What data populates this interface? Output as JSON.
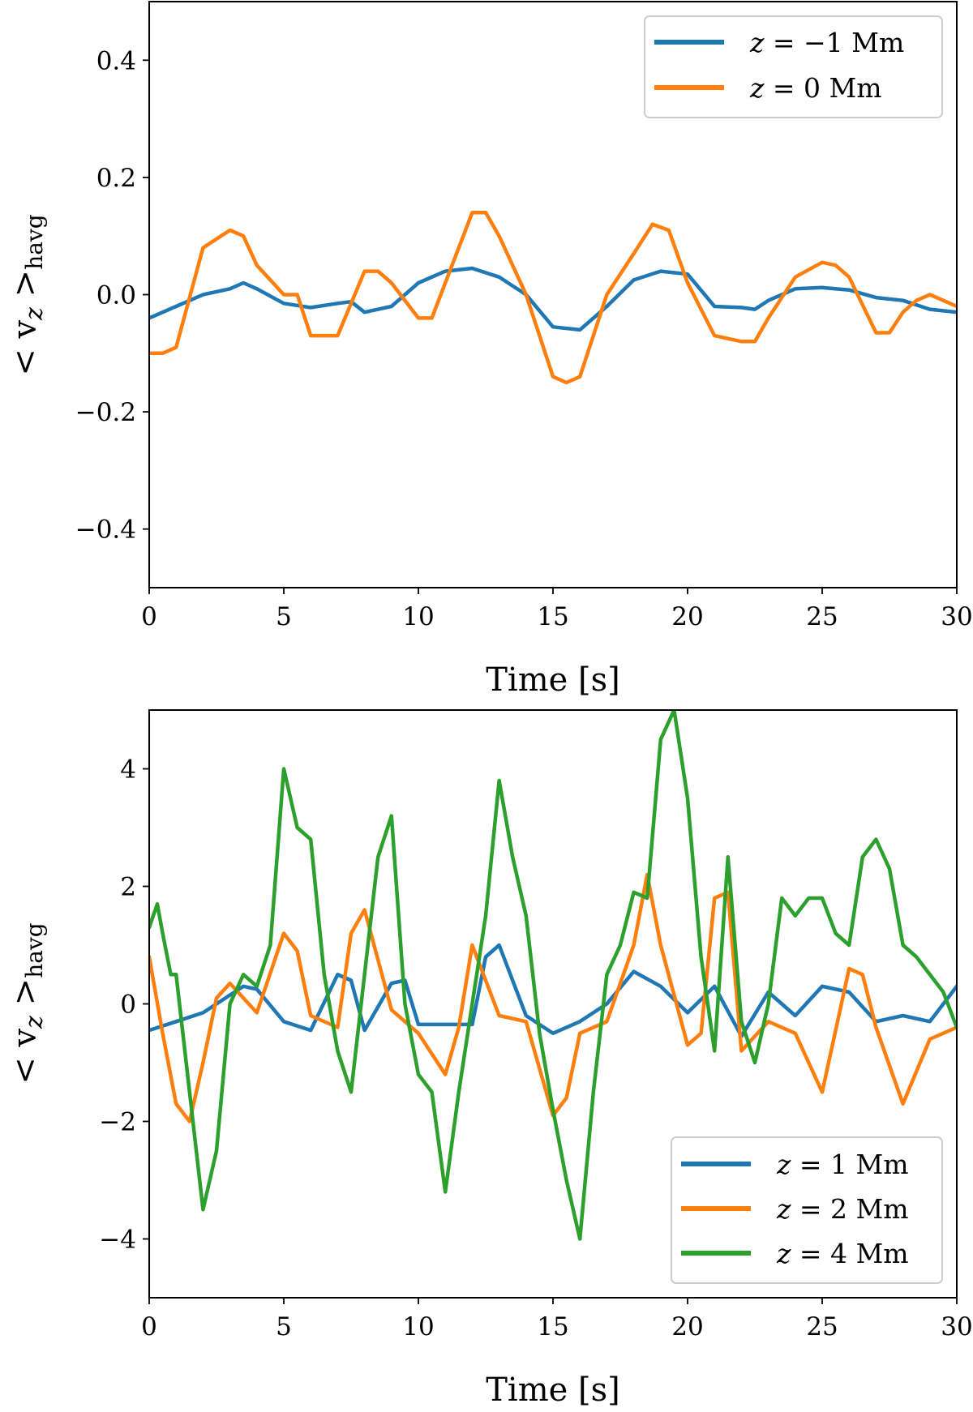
{
  "chart_data": [
    {
      "type": "line",
      "xlabel": "Time [s]",
      "ylabel": "< v",
      "ylabel_sub": "z",
      "ylabel_tail": " >",
      "ylabel_subtail": "havg",
      "xlim": [
        0,
        30
      ],
      "ylim": [
        -0.5,
        0.5
      ],
      "xticks": [
        0,
        5,
        10,
        15,
        20,
        25,
        30
      ],
      "xtick_labels": [
        "0",
        "5",
        "10",
        "15",
        "20",
        "25",
        "30"
      ],
      "yticks": [
        -0.4,
        -0.2,
        0.0,
        0.2,
        0.4
      ],
      "ytick_labels": [
        "−0.4",
        "−0.2",
        "0.0",
        "0.2",
        "0.4"
      ],
      "legend": {
        "placement": "top-right"
      },
      "series": [
        {
          "name": "z = −1 Mm",
          "label_var": "z",
          "label_rest": " = −1 Mm",
          "color": "#1f77b4",
          "x": [
            0,
            1,
            2,
            3,
            3.5,
            4,
            5,
            6,
            7,
            7.5,
            8,
            9,
            10,
            11,
            12,
            13,
            14,
            15,
            16,
            17,
            18,
            19,
            20,
            21,
            22,
            22.5,
            23,
            24,
            25,
            26,
            27,
            28,
            29,
            30
          ],
          "y": [
            -0.04,
            -0.02,
            0.0,
            0.01,
            0.02,
            0.01,
            -0.015,
            -0.022,
            -0.015,
            -0.012,
            -0.03,
            -0.02,
            0.02,
            0.04,
            0.045,
            0.03,
            0.0,
            -0.055,
            -0.06,
            -0.02,
            0.025,
            0.04,
            0.035,
            -0.02,
            -0.022,
            -0.025,
            -0.01,
            0.01,
            0.012,
            0.008,
            -0.005,
            -0.01,
            -0.025,
            -0.03
          ]
        },
        {
          "name": "z = 0 Mm",
          "label_var": "z",
          "label_rest": " = 0 Mm",
          "color": "#ff7f0e",
          "x": [
            0,
            0.5,
            1,
            2,
            3,
            3.5,
            4,
            5,
            5.5,
            6,
            7,
            8,
            8.5,
            9,
            10,
            10.5,
            11,
            12,
            12.5,
            13,
            14,
            15,
            15.5,
            16,
            17,
            18,
            18.7,
            19.3,
            20,
            21,
            22,
            22.5,
            23,
            24,
            25,
            25.5,
            26,
            27,
            27.5,
            28,
            28.5,
            29,
            29.5,
            30
          ],
          "y": [
            -0.1,
            -0.1,
            -0.09,
            0.08,
            0.11,
            0.1,
            0.05,
            0.0,
            0.0,
            -0.07,
            -0.07,
            0.04,
            0.04,
            0.02,
            -0.04,
            -0.04,
            0.02,
            0.14,
            0.14,
            0.1,
            0.0,
            -0.14,
            -0.15,
            -0.14,
            0.0,
            0.07,
            0.12,
            0.11,
            0.02,
            -0.07,
            -0.08,
            -0.08,
            -0.04,
            0.03,
            0.055,
            0.05,
            0.03,
            -0.065,
            -0.065,
            -0.03,
            -0.01,
            0.0,
            -0.01,
            -0.02
          ]
        }
      ]
    },
    {
      "type": "line",
      "xlabel": "Time [s]",
      "ylabel": "< v",
      "ylabel_sub": "z",
      "ylabel_tail": " >",
      "ylabel_subtail": "havg",
      "xlim": [
        0,
        30
      ],
      "ylim": [
        -5,
        5
      ],
      "xticks": [
        0,
        5,
        10,
        15,
        20,
        25,
        30
      ],
      "xtick_labels": [
        "0",
        "5",
        "10",
        "15",
        "20",
        "25",
        "30"
      ],
      "yticks": [
        -4,
        -2,
        0,
        2,
        4
      ],
      "ytick_labels": [
        "−4",
        "−2",
        "0",
        "2",
        "4"
      ],
      "legend": {
        "placement": "bottom-right"
      },
      "series": [
        {
          "name": "z = 1 Mm",
          "label_var": "z",
          "label_rest": " = 1 Mm",
          "color": "#1f77b4",
          "x": [
            0,
            1,
            2,
            3,
            3.5,
            4,
            5,
            6,
            7,
            7.5,
            8,
            9,
            9.5,
            10,
            11,
            12,
            12.5,
            13,
            14,
            15,
            16,
            17,
            18,
            19,
            20,
            21,
            22,
            23,
            24,
            25,
            26,
            27,
            28,
            29,
            30
          ],
          "y": [
            -0.45,
            -0.3,
            -0.15,
            0.15,
            0.3,
            0.25,
            -0.3,
            -0.45,
            0.5,
            0.4,
            -0.45,
            0.35,
            0.4,
            -0.35,
            -0.35,
            -0.35,
            0.8,
            1.0,
            -0.2,
            -0.5,
            -0.3,
            0.0,
            0.55,
            0.3,
            -0.15,
            0.3,
            -0.55,
            0.2,
            -0.2,
            0.3,
            0.2,
            -0.3,
            -0.2,
            -0.3,
            0.3
          ]
        },
        {
          "name": "z = 2 Mm",
          "label_var": "z",
          "label_rest": " = 2 Mm",
          "color": "#ff7f0e",
          "x": [
            0,
            0.5,
            1,
            1.5,
            2,
            2.5,
            3,
            4,
            5,
            5.5,
            6,
            7,
            7.5,
            8,
            9,
            10,
            11,
            11.5,
            12,
            13,
            14,
            15,
            15.5,
            16,
            17,
            18,
            18.5,
            19,
            20,
            20.5,
            21,
            21.5,
            22,
            23,
            24,
            25,
            26,
            26.5,
            27,
            28,
            29,
            30
          ],
          "y": [
            0.8,
            -0.5,
            -1.7,
            -2.0,
            -1.0,
            0.1,
            0.35,
            -0.15,
            1.2,
            0.9,
            -0.2,
            -0.4,
            1.2,
            1.6,
            -0.1,
            -0.5,
            -1.2,
            -0.4,
            1.0,
            -0.2,
            -0.3,
            -1.9,
            -1.6,
            -0.5,
            -0.3,
            1.0,
            2.2,
            1.0,
            -0.7,
            -0.5,
            1.8,
            1.9,
            -0.8,
            -0.3,
            -0.5,
            -1.5,
            0.6,
            0.5,
            -0.4,
            -1.7,
            -0.6,
            -0.4
          ]
        },
        {
          "name": "z = 4 Mm",
          "label_var": "z",
          "label_rest": " = 4 Mm",
          "color": "#2ca02c",
          "x": [
            0,
            0.3,
            0.5,
            0.8,
            1,
            1.5,
            2,
            2.5,
            3,
            3.5,
            4,
            4.5,
            5,
            5.5,
            6,
            6.5,
            7,
            7.5,
            8,
            8.5,
            9,
            9.5,
            10,
            10.5,
            11,
            11.5,
            12,
            12.5,
            13,
            13.5,
            14,
            14.5,
            15,
            15.5,
            16,
            16.5,
            17,
            17.5,
            18,
            18.5,
            19,
            19.5,
            20,
            20.5,
            21,
            21.5,
            22,
            22.5,
            23,
            23.5,
            24,
            24.5,
            25,
            25.5,
            26,
            26.5,
            27,
            27.5,
            28,
            28.5,
            29,
            29.5,
            30
          ],
          "y": [
            1.3,
            1.7,
            1.2,
            0.5,
            0.5,
            -1.5,
            -3.5,
            -2.5,
            0.0,
            0.5,
            0.3,
            1.0,
            4.0,
            3.0,
            2.8,
            0.5,
            -0.8,
            -1.5,
            0.5,
            2.5,
            3.2,
            0.0,
            -1.2,
            -1.5,
            -3.2,
            -1.5,
            0.0,
            1.5,
            3.8,
            2.5,
            1.5,
            -0.5,
            -1.8,
            -3.0,
            -4.0,
            -1.5,
            0.5,
            1.0,
            1.9,
            1.8,
            4.5,
            5.0,
            3.5,
            0.8,
            -0.8,
            2.5,
            -0.3,
            -1.0,
            0.0,
            1.8,
            1.5,
            1.8,
            1.8,
            1.2,
            1.0,
            2.5,
            2.8,
            2.3,
            1.0,
            0.8,
            0.5,
            0.2,
            -0.4
          ]
        }
      ]
    }
  ]
}
